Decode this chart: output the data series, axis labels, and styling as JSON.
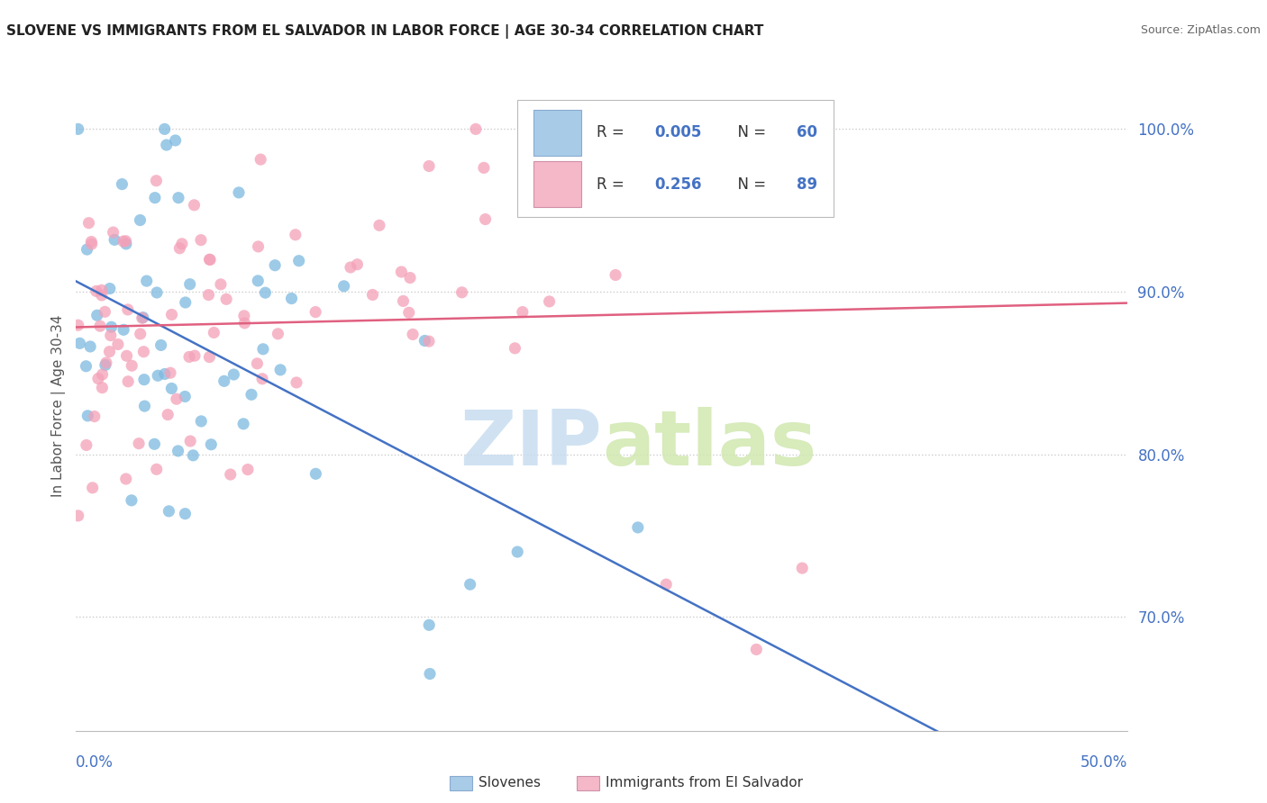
{
  "title": "SLOVENE VS IMMIGRANTS FROM EL SALVADOR IN LABOR FORCE | AGE 30-34 CORRELATION CHART",
  "source": "Source: ZipAtlas.com",
  "xlim": [
    0.0,
    0.5
  ],
  "ylim": [
    0.63,
    1.03
  ],
  "ylabel_ticks": [
    0.7,
    0.8,
    0.9,
    1.0
  ],
  "ylabel_labels": [
    "70.0%",
    "80.0%",
    "90.0%",
    "100.0%"
  ],
  "slovene_color": "#7cb9e0",
  "salvador_color": "#f4a0b8",
  "trend_blue_color": "#4472c4",
  "trend_pink_color": "#e06080",
  "background_color": "#ffffff",
  "grid_color": "#cccccc",
  "tick_color": "#4472c4",
  "ylabel_label": "In Labor Force | Age 30-34",
  "watermark_zip_color": "#c8ddf0",
  "watermark_atlas_color": "#d0e8b0",
  "legend_blue_color": "#a8cce8",
  "legend_pink_color": "#f4b8c8",
  "legend_R1": "0.005",
  "legend_N1": "60",
  "legend_R2": "0.256",
  "legend_N2": "89"
}
